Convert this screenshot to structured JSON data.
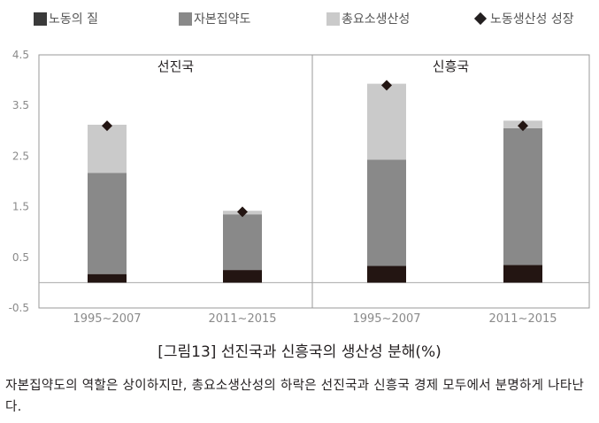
{
  "colors": {
    "labor_quality": "#231512",
    "capital_intensity": "#898989",
    "tfp": "#cacaca",
    "marker": "#231512",
    "panel_border": "#999999",
    "axis_text": "#8a8a8a"
  },
  "legend": {
    "items": [
      {
        "label": "노동의 질",
        "kind": "square",
        "color": "#3a3a3a"
      },
      {
        "label": "자본집약도",
        "kind": "square",
        "color": "#898989"
      },
      {
        "label": "총요소생산성",
        "kind": "square",
        "color": "#cacaca"
      },
      {
        "label": "노동생산성 성장",
        "kind": "diamond",
        "color": "#231f20"
      }
    ]
  },
  "caption": "[그림13] 선진국과 신흥국의 생산성 분해(%)",
  "description": "자본집약도의 역할은 상이하지만, 총요소생산성의 하락은 선진국과 신흥국 경제 모두에서 분명하게 나타난다.",
  "chart_data": {
    "type": "bar",
    "stacked": true,
    "ylim": [
      -0.5,
      4.5
    ],
    "yticks": [
      "4.5",
      "3.5",
      "2.5",
      "1.5",
      "0.5",
      "-0.5"
    ],
    "ytick_values": [
      4.5,
      3.5,
      2.5,
      1.5,
      0.5,
      -0.5
    ],
    "legend_position": "top",
    "panels": [
      {
        "title": "선진국",
        "categories": [
          "1995~2007",
          "2011~2015"
        ],
        "series": [
          {
            "name": "노동의 질",
            "values": [
              0.17,
              0.25
            ]
          },
          {
            "name": "자본집약도",
            "values": [
              2.0,
              1.1
            ]
          },
          {
            "name": "총요소생산성",
            "values": [
              0.95,
              0.07
            ]
          }
        ],
        "labor_productivity_growth": [
          3.1,
          1.4
        ]
      },
      {
        "title": "신흥국",
        "categories": [
          "1995~2007",
          "2011~2015"
        ],
        "series": [
          {
            "name": "노동의 질",
            "values": [
              0.33,
              0.35
            ]
          },
          {
            "name": "자본집약도",
            "values": [
              2.1,
              2.7
            ]
          },
          {
            "name": "총요소생산성",
            "values": [
              1.5,
              0.15
            ]
          }
        ],
        "labor_productivity_growth": [
          3.9,
          3.1
        ]
      }
    ]
  }
}
